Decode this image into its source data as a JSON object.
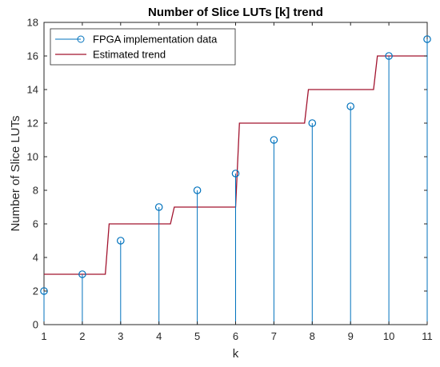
{
  "chart_data": {
    "type": "line",
    "title": "Number of Slice LUTs [k] trend",
    "xlabel": "k",
    "ylabel": "Number of Slice LUTs",
    "xlim": [
      1,
      11
    ],
    "ylim": [
      0,
      18
    ],
    "xticks": [
      1,
      2,
      3,
      4,
      5,
      6,
      7,
      8,
      9,
      10,
      11
    ],
    "yticks": [
      0,
      2,
      4,
      6,
      8,
      10,
      12,
      14,
      16,
      18
    ],
    "grid": false,
    "legend_position": "top-left",
    "series": [
      {
        "name": "FPGA implementation data",
        "style": "stem",
        "color": "#0072BD",
        "x": [
          1,
          2,
          3,
          4,
          5,
          6,
          7,
          8,
          9,
          10,
          11
        ],
        "y": [
          2,
          3,
          5,
          7,
          8,
          9,
          11,
          12,
          13,
          16,
          17
        ]
      },
      {
        "name": "Estimated trend",
        "style": "line",
        "color": "#A2142F",
        "x": [
          1,
          2.6,
          2.7,
          4.3,
          4.4,
          6.0,
          6.1,
          7.8,
          7.9,
          9.6,
          9.7,
          11
        ],
        "y": [
          3,
          3,
          6,
          6,
          7,
          7,
          12,
          12,
          14,
          14,
          16,
          16
        ]
      }
    ]
  }
}
